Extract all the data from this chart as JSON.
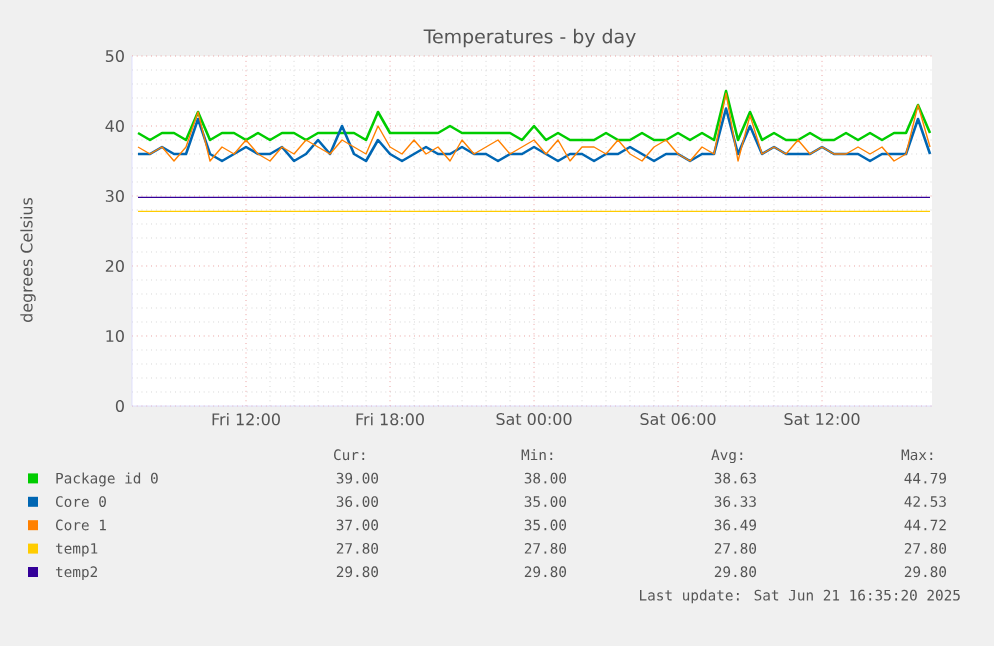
{
  "chart_data": {
    "type": "line",
    "title": "Temperatures - by day",
    "ylabel": "degrees Celsius",
    "x": [
      "2025-06-20T07:30",
      "2025-06-20T08:00",
      "2025-06-20T08:30",
      "2025-06-20T09:00",
      "2025-06-20T09:30",
      "2025-06-20T10:00",
      "2025-06-20T10:30",
      "2025-06-20T11:00",
      "2025-06-20T11:30",
      "2025-06-20T12:00",
      "2025-06-20T12:30",
      "2025-06-20T13:00",
      "2025-06-20T13:30",
      "2025-06-20T14:00",
      "2025-06-20T14:30",
      "2025-06-20T15:00",
      "2025-06-20T15:30",
      "2025-06-20T16:00",
      "2025-06-20T16:30",
      "2025-06-20T17:00",
      "2025-06-20T17:30",
      "2025-06-20T18:00",
      "2025-06-20T18:30",
      "2025-06-20T19:00",
      "2025-06-20T19:30",
      "2025-06-20T20:00",
      "2025-06-20T20:30",
      "2025-06-20T21:00",
      "2025-06-20T21:30",
      "2025-06-20T22:00",
      "2025-06-20T22:30",
      "2025-06-20T23:00",
      "2025-06-20T23:30",
      "2025-06-21T00:00",
      "2025-06-21T00:30",
      "2025-06-21T01:00",
      "2025-06-21T01:30",
      "2025-06-21T02:00",
      "2025-06-21T02:30",
      "2025-06-21T03:00",
      "2025-06-21T03:30",
      "2025-06-21T04:00",
      "2025-06-21T04:30",
      "2025-06-21T05:00",
      "2025-06-21T05:30",
      "2025-06-21T06:00",
      "2025-06-21T06:30",
      "2025-06-21T07:00",
      "2025-06-21T07:30",
      "2025-06-21T08:00",
      "2025-06-21T08:30",
      "2025-06-21T09:00",
      "2025-06-21T09:30",
      "2025-06-21T10:00",
      "2025-06-21T10:30",
      "2025-06-21T11:00",
      "2025-06-21T11:30",
      "2025-06-21T12:00",
      "2025-06-21T12:30",
      "2025-06-21T13:00",
      "2025-06-21T13:30",
      "2025-06-21T14:00",
      "2025-06-21T14:30",
      "2025-06-21T15:00",
      "2025-06-21T15:30",
      "2025-06-21T16:00",
      "2025-06-21T16:30"
    ],
    "series": [
      {
        "name": "Package id 0",
        "color": "#00cc00",
        "values": [
          39,
          38,
          39,
          39,
          38,
          42,
          38,
          39,
          39,
          38,
          39,
          38,
          39,
          39,
          38,
          39,
          39,
          39,
          39,
          38,
          42,
          39,
          39,
          39,
          39,
          39,
          40,
          39,
          39,
          39,
          39,
          39,
          38,
          40,
          38,
          39,
          38,
          38,
          38,
          39,
          38,
          38,
          39,
          38,
          38,
          39,
          38,
          39,
          38,
          45,
          38,
          42,
          38,
          39,
          38,
          38,
          39,
          38,
          38,
          39,
          38,
          39,
          38,
          39,
          39,
          43,
          39
        ]
      },
      {
        "name": "Core 0",
        "color": "#0066b3",
        "values": [
          36,
          36,
          37,
          36,
          36,
          41,
          36,
          35,
          36,
          37,
          36,
          36,
          37,
          35,
          36,
          38,
          36,
          40,
          36,
          35,
          38,
          36,
          35,
          36,
          37,
          36,
          36,
          37,
          36,
          36,
          35,
          36,
          36,
          37,
          36,
          35,
          36,
          36,
          35,
          36,
          36,
          37,
          36,
          35,
          36,
          36,
          35,
          36,
          36,
          42.5,
          36,
          40,
          36,
          37,
          36,
          36,
          36,
          37,
          36,
          36,
          36,
          35,
          36,
          36,
          36,
          41,
          36
        ]
      },
      {
        "name": "Core 1",
        "color": "#ff8000",
        "values": [
          37,
          36,
          37,
          35,
          37,
          42,
          35,
          37,
          36,
          38,
          36,
          35,
          37,
          36,
          38,
          37,
          36,
          38,
          37,
          36,
          40,
          37,
          36,
          38,
          36,
          37,
          35,
          38,
          36,
          37,
          38,
          36,
          37,
          38,
          36,
          38,
          35,
          37,
          37,
          36,
          38,
          36,
          35,
          37,
          38,
          36,
          35,
          37,
          36,
          44.7,
          35,
          41.5,
          36,
          37,
          36,
          38,
          36,
          37,
          36,
          36,
          37,
          36,
          37,
          35,
          36,
          43,
          37
        ]
      },
      {
        "name": "temp1",
        "color": "#ffcc00",
        "values": [
          27.8,
          27.8,
          27.8,
          27.8,
          27.8,
          27.8,
          27.8,
          27.8,
          27.8,
          27.8,
          27.8,
          27.8,
          27.8,
          27.8,
          27.8,
          27.8,
          27.8,
          27.8,
          27.8,
          27.8,
          27.8,
          27.8,
          27.8,
          27.8,
          27.8,
          27.8,
          27.8,
          27.8,
          27.8,
          27.8,
          27.8,
          27.8,
          27.8,
          27.8,
          27.8,
          27.8,
          27.8,
          27.8,
          27.8,
          27.8,
          27.8,
          27.8,
          27.8,
          27.8,
          27.8,
          27.8,
          27.8,
          27.8,
          27.8,
          27.8,
          27.8,
          27.8,
          27.8,
          27.8,
          27.8,
          27.8,
          27.8,
          27.8,
          27.8,
          27.8,
          27.8,
          27.8,
          27.8,
          27.8,
          27.8,
          27.8,
          27.8
        ]
      },
      {
        "name": "temp2",
        "color": "#330099",
        "values": [
          29.8,
          29.8,
          29.8,
          29.8,
          29.8,
          29.8,
          29.8,
          29.8,
          29.8,
          29.8,
          29.8,
          29.8,
          29.8,
          29.8,
          29.8,
          29.8,
          29.8,
          29.8,
          29.8,
          29.8,
          29.8,
          29.8,
          29.8,
          29.8,
          29.8,
          29.8,
          29.8,
          29.8,
          29.8,
          29.8,
          29.8,
          29.8,
          29.8,
          29.8,
          29.8,
          29.8,
          29.8,
          29.8,
          29.8,
          29.8,
          29.8,
          29.8,
          29.8,
          29.8,
          29.8,
          29.8,
          29.8,
          29.8,
          29.8,
          29.8,
          29.8,
          29.8,
          29.8,
          29.8,
          29.8,
          29.8,
          29.8,
          29.8,
          29.8,
          29.8,
          29.8,
          29.8,
          29.8,
          29.8,
          29.8,
          29.8,
          29.8
        ]
      }
    ],
    "xlim": [
      "2025-06-20T07:15",
      "2025-06-21T16:35"
    ],
    "xticks": [
      {
        "value": "2025-06-20T12:00",
        "label": "Fri 12:00"
      },
      {
        "value": "2025-06-20T18:00",
        "label": "Fri 18:00"
      },
      {
        "value": "2025-06-21T00:00",
        "label": "Sat 00:00"
      },
      {
        "value": "2025-06-21T06:00",
        "label": "Sat 06:00"
      },
      {
        "value": "2025-06-21T12:00",
        "label": "Sat 12:00"
      }
    ],
    "ylim": [
      0,
      50
    ],
    "yticks": [
      0,
      10,
      20,
      30,
      40,
      50
    ],
    "grid": true,
    "legend": "bottom",
    "annotations": [
      "Cur:",
      "Min:",
      "Avg:",
      "Max:",
      "39.00",
      "38.00",
      "38.63",
      "44.79",
      "36.00",
      "35.00",
      "36.33",
      "42.53",
      "37.00",
      "35.00",
      "36.49",
      "44.72",
      "27.80",
      "27.80",
      "27.80",
      "27.80",
      "29.80",
      "29.80",
      "29.80",
      "29.80",
      "Last update: Sat Jun 21 16:35:20 2025"
    ]
  }
}
